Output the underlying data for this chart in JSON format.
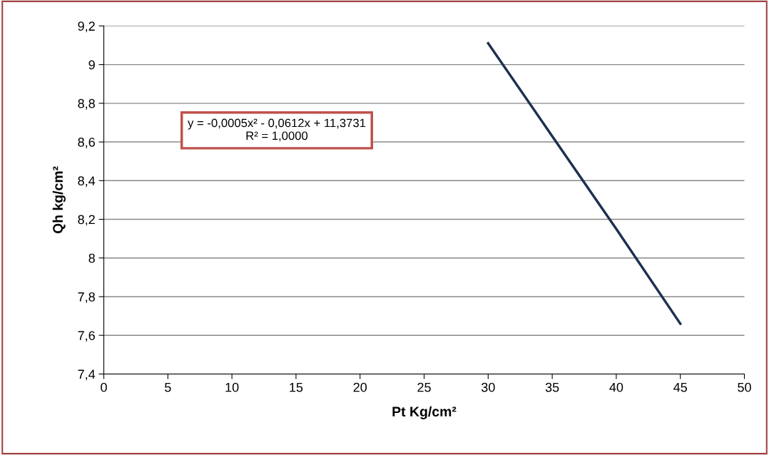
{
  "chart_data": {
    "type": "line",
    "xlabel": "Pt Kg/cm²",
    "ylabel": "Qh kg/cm²",
    "x": [
      30,
      35,
      40,
      45
    ],
    "series": [
      {
        "color": "#1f3050",
        "values": [
          9.11,
          8.63,
          8.15,
          7.66
        ]
      }
    ],
    "xlim": [
      0,
      50
    ],
    "xticks": [
      0,
      5,
      10,
      15,
      20,
      25,
      30,
      35,
      40,
      45,
      50
    ],
    "ylim": [
      7.4,
      9.2
    ],
    "yticks": [
      {
        "value": 7.4,
        "label": "7,4"
      },
      {
        "value": 7.6,
        "label": "7,6"
      },
      {
        "value": 7.8,
        "label": "7,8"
      },
      8,
      {
        "value": 8.2,
        "label": "8,2"
      },
      {
        "value": 8.4,
        "label": "8,4"
      },
      {
        "value": 8.6,
        "label": "8,6"
      },
      {
        "value": 8.8,
        "label": "8,8"
      },
      9,
      {
        "value": 9.2,
        "label": "9,2"
      }
    ],
    "grid": "y",
    "marker": "none",
    "line_style": "solid",
    "annotations": [
      "y = -0,0005x² - 0,0612x + 11,3731\nR² = 1,0000"
    ]
  }
}
